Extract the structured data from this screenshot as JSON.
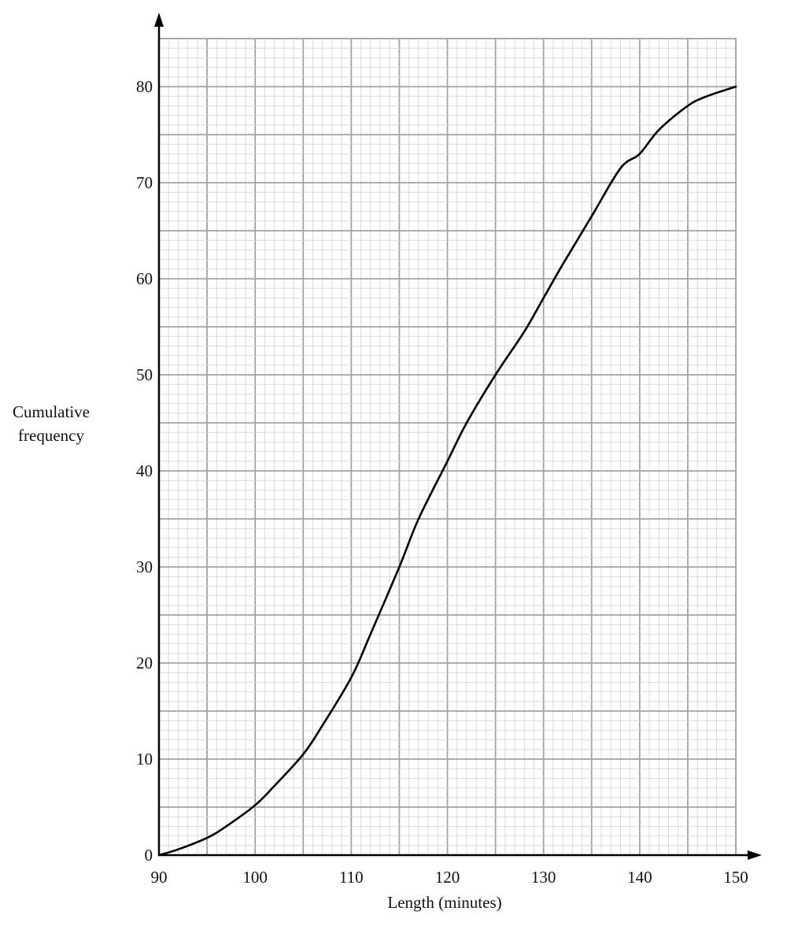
{
  "chart_data": {
    "type": "line",
    "title": "",
    "xlabel": "Length (minutes)",
    "ylabel_line1": "Cumulative",
    "ylabel_line2": "frequency",
    "xlim": [
      90,
      150
    ],
    "ylim": [
      0,
      85
    ],
    "x_ticks": [
      90,
      100,
      110,
      120,
      130,
      140,
      150
    ],
    "y_ticks": [
      0,
      10,
      20,
      30,
      40,
      50,
      60,
      70,
      80
    ],
    "grid": true,
    "series": [
      {
        "x": [
          90,
          92,
          95,
          97,
          100,
          102,
          105,
          107,
          110,
          112,
          115,
          117,
          120,
          122,
          125,
          128,
          130,
          132,
          135,
          138,
          140,
          142,
          145,
          147,
          150
        ],
        "y": [
          0,
          0.6,
          1.8,
          3,
          5.2,
          7.2,
          10.5,
          13.5,
          18.5,
          23,
          30,
          35,
          41,
          45,
          50,
          54.5,
          58,
          61.5,
          66.5,
          71.5,
          73,
          75.5,
          78,
          79,
          80
        ]
      }
    ],
    "colors": {
      "grid_minor": "#d2d2d2",
      "grid_major": "#a3a3a3",
      "curve": "#000000",
      "axis": "#000000"
    }
  }
}
